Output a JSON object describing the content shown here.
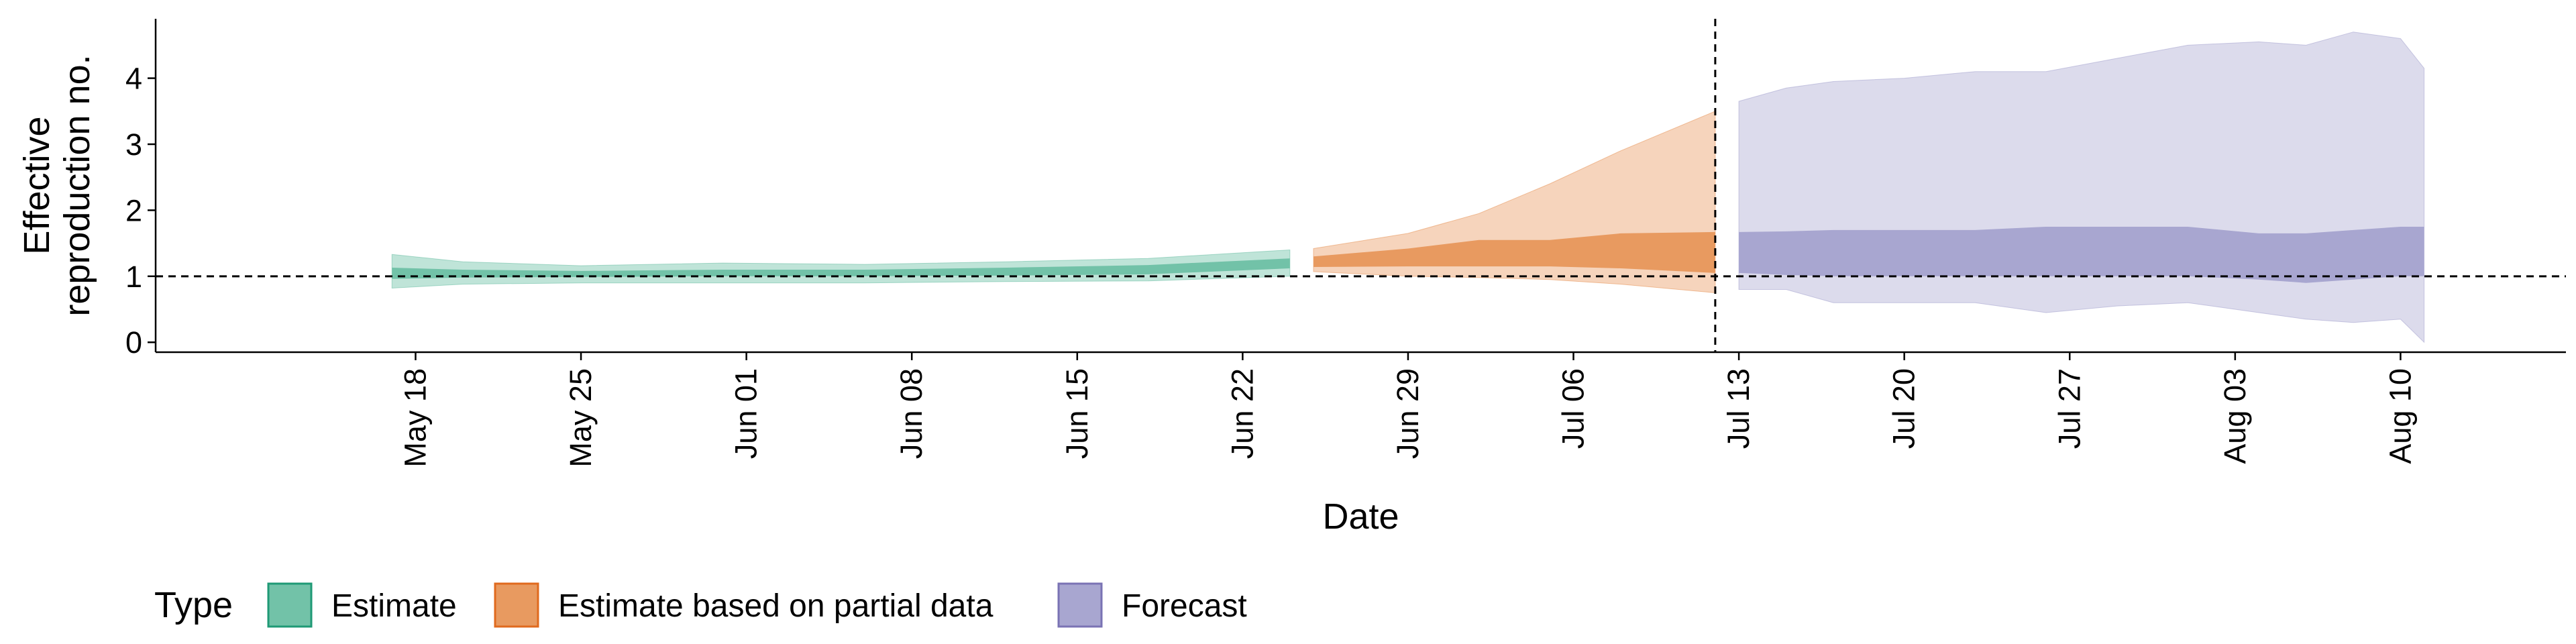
{
  "chart_data": {
    "type": "area",
    "xlabel": "Date",
    "ylabel": [
      "Effective",
      "reproduction no."
    ],
    "ylim": [
      -0.15,
      4.9
    ],
    "yticks": [
      0,
      1,
      2,
      3,
      4
    ],
    "xlim": [
      "2020-05-07",
      "2020-08-17"
    ],
    "xticks": [
      {
        "date": "2020-05-18",
        "label": "May 18"
      },
      {
        "date": "2020-05-25",
        "label": "May 25"
      },
      {
        "date": "2020-06-01",
        "label": "Jun 01"
      },
      {
        "date": "2020-06-08",
        "label": "Jun 08"
      },
      {
        "date": "2020-06-15",
        "label": "Jun 15"
      },
      {
        "date": "2020-06-22",
        "label": "Jun 22"
      },
      {
        "date": "2020-06-29",
        "label": "Jun 29"
      },
      {
        "date": "2020-07-06",
        "label": "Jul 06"
      },
      {
        "date": "2020-07-13",
        "label": "Jul 13"
      },
      {
        "date": "2020-07-20",
        "label": "Jul 20"
      },
      {
        "date": "2020-07-27",
        "label": "Jul 27"
      },
      {
        "date": "2020-08-03",
        "label": "Aug 03"
      },
      {
        "date": "2020-08-10",
        "label": "Aug 10"
      }
    ],
    "hline": 1,
    "vline": "2020-07-12",
    "legend": {
      "title": "Type",
      "position": "bottom-left"
    },
    "series": [
      {
        "name": "Estimate",
        "outer_color": "#bfe4d8",
        "inner_color": "#72c2a8",
        "points": [
          {
            "x": "2020-05-17",
            "lo90": 0.82,
            "hi90": 1.33,
            "lo50": 0.96,
            "hi50": 1.13
          },
          {
            "x": "2020-05-20",
            "lo90": 0.88,
            "hi90": 1.22,
            "lo50": 0.98,
            "hi50": 1.1
          },
          {
            "x": "2020-05-25",
            "lo90": 0.9,
            "hi90": 1.16,
            "lo50": 0.99,
            "hi50": 1.08
          },
          {
            "x": "2020-05-31",
            "lo90": 0.9,
            "hi90": 1.2,
            "lo50": 1.0,
            "hi50": 1.1
          },
          {
            "x": "2020-06-06",
            "lo90": 0.9,
            "hi90": 1.18,
            "lo50": 1.0,
            "hi50": 1.1
          },
          {
            "x": "2020-06-12",
            "lo90": 0.92,
            "hi90": 1.22,
            "lo50": 1.01,
            "hi50": 1.13
          },
          {
            "x": "2020-06-18",
            "lo90": 0.93,
            "hi90": 1.27,
            "lo50": 1.03,
            "hi50": 1.17
          },
          {
            "x": "2020-06-24",
            "lo90": 1.0,
            "hi90": 1.4,
            "lo50": 1.12,
            "hi50": 1.27
          }
        ]
      },
      {
        "name": "Estimate based on partial data",
        "outer_color": "#f6d4bc",
        "inner_color": "#e89a60",
        "points": [
          {
            "x": "2020-06-25",
            "lo90": 1.07,
            "hi90": 1.42,
            "lo50": 1.14,
            "hi50": 1.3
          },
          {
            "x": "2020-06-29",
            "lo90": 1.0,
            "hi90": 1.65,
            "lo50": 1.15,
            "hi50": 1.42
          },
          {
            "x": "2020-07-02",
            "lo90": 0.98,
            "hi90": 1.95,
            "lo50": 1.15,
            "hi50": 1.55
          },
          {
            "x": "2020-07-05",
            "lo90": 0.95,
            "hi90": 2.4,
            "lo50": 1.15,
            "hi50": 1.55
          },
          {
            "x": "2020-07-08",
            "lo90": 0.88,
            "hi90": 2.9,
            "lo50": 1.12,
            "hi50": 1.65
          },
          {
            "x": "2020-07-12",
            "lo90": 0.75,
            "hi90": 3.5,
            "lo50": 1.05,
            "hi50": 1.67
          }
        ]
      },
      {
        "name": "Forecast",
        "outer_color": "#dcdbec",
        "inner_color": "#a8a6d0",
        "points": [
          {
            "x": "2020-07-13",
            "lo90": 0.8,
            "hi90": 3.65,
            "lo50": 1.05,
            "hi50": 1.67
          },
          {
            "x": "2020-07-15",
            "lo90": 0.8,
            "hi90": 3.85,
            "lo50": 1.02,
            "hi50": 1.68
          },
          {
            "x": "2020-07-17",
            "lo90": 0.6,
            "hi90": 3.95,
            "lo50": 1.0,
            "hi50": 1.7
          },
          {
            "x": "2020-07-20",
            "lo90": 0.6,
            "hi90": 4.0,
            "lo50": 1.0,
            "hi50": 1.7
          },
          {
            "x": "2020-07-23",
            "lo90": 0.6,
            "hi90": 4.1,
            "lo50": 1.0,
            "hi50": 1.7
          },
          {
            "x": "2020-07-26",
            "lo90": 0.45,
            "hi90": 4.1,
            "lo50": 1.0,
            "hi50": 1.75
          },
          {
            "x": "2020-07-29",
            "lo90": 0.55,
            "hi90": 4.3,
            "lo50": 1.0,
            "hi50": 1.75
          },
          {
            "x": "2020-08-01",
            "lo90": 0.6,
            "hi90": 4.5,
            "lo50": 1.0,
            "hi50": 1.75
          },
          {
            "x": "2020-08-04",
            "lo90": 0.45,
            "hi90": 4.55,
            "lo50": 0.95,
            "hi50": 1.65
          },
          {
            "x": "2020-08-06",
            "lo90": 0.35,
            "hi90": 4.5,
            "lo50": 0.9,
            "hi50": 1.65
          },
          {
            "x": "2020-08-08",
            "lo90": 0.3,
            "hi90": 4.7,
            "lo50": 0.95,
            "hi50": 1.7
          },
          {
            "x": "2020-08-10",
            "lo90": 0.35,
            "hi90": 4.6,
            "lo50": 1.0,
            "hi50": 1.75
          },
          {
            "x": "2020-08-11",
            "lo90": 0.0,
            "hi90": 4.15,
            "lo50": 1.0,
            "hi50": 1.75
          }
        ]
      }
    ]
  }
}
